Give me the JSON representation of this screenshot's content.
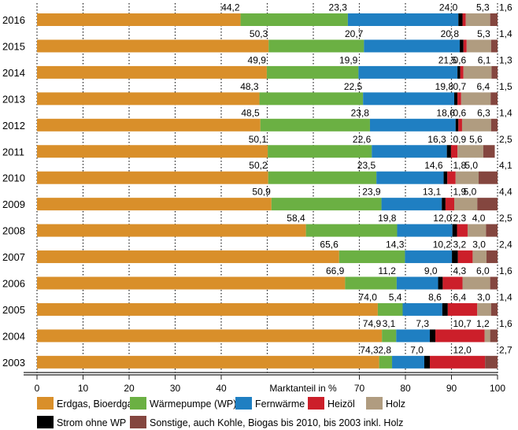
{
  "chart_data": {
    "type": "bar",
    "orientation": "horizontal",
    "stacked": true,
    "xlabel": "Marktanteil in %",
    "xlim": [
      0,
      100
    ],
    "x_tick_labels": [
      "0",
      "10",
      "20",
      "30",
      "40",
      "70",
      "80",
      "90",
      "100"
    ],
    "x_ticks": [
      0,
      10,
      20,
      30,
      40,
      70,
      80,
      90,
      100
    ],
    "grid": "vertical dotted every 10",
    "legend_placement": "bottom",
    "categories": [
      "2016",
      "2015",
      "2014",
      "2013",
      "2012",
      "2011",
      "2010",
      "2009",
      "2008",
      "2007",
      "2006",
      "2005",
      "2004",
      "2003"
    ],
    "series": [
      {
        "name": "Erdgas, Bioerdgas",
        "color": "#d98f2a",
        "values": [
          44.2,
          50.3,
          49.9,
          48.3,
          48.5,
          50.1,
          50.2,
          50.9,
          58.4,
          65.6,
          66.9,
          74.0,
          74.9,
          74.3
        ]
      },
      {
        "name": "Wärmepumpe (WP)",
        "color": "#6bb043",
        "values": [
          23.3,
          20.7,
          19.9,
          22.5,
          23.8,
          22.6,
          23.5,
          23.9,
          19.8,
          14.3,
          11.2,
          5.4,
          3.1,
          2.8
        ]
      },
      {
        "name": "Fernwärme",
        "color": "#1f7fc2",
        "values": [
          24.0,
          20.8,
          21.5,
          19.8,
          18.6,
          16.3,
          14.6,
          13.1,
          12.0,
          10.2,
          9.0,
          8.6,
          7.3,
          7.0
        ]
      },
      {
        "name": "Strom ohne WP",
        "color": "#000000",
        "values": [
          0.9,
          0.8,
          0.6,
          0.7,
          0.6,
          0.9,
          0.8,
          0.8,
          1.0,
          1.3,
          1.0,
          1.2,
          1.2,
          1.2
        ]
      },
      {
        "name": "Heizöl",
        "color": "#cc1f2a",
        "values": [
          0.7,
          0.7,
          0.7,
          0.8,
          0.8,
          1.4,
          1.8,
          1.9,
          2.3,
          3.2,
          4.3,
          6.4,
          10.7,
          12.0
        ]
      },
      {
        "name": "Holz",
        "color": "#b09c80",
        "values": [
          5.3,
          5.3,
          6.1,
          6.4,
          6.3,
          5.6,
          5.0,
          5.0,
          4.0,
          3.0,
          6.0,
          3.0,
          1.2,
          0
        ]
      },
      {
        "name": "Sonstige, auch Kohle, Biogas bis 2010, bis 2003 inkl. Holz",
        "color": "#84463f",
        "values": [
          1.6,
          1.4,
          1.3,
          1.5,
          1.4,
          2.5,
          4.1,
          4.4,
          2.5,
          2.4,
          1.6,
          1.4,
          1.6,
          2.7
        ]
      }
    ],
    "data_labels": [
      [
        [
          "0",
          "44,2"
        ],
        [
          "1",
          "23,3"
        ],
        [
          "2",
          "24,0"
        ],
        [
          "5",
          "5,3"
        ],
        [
          "6",
          "1,6"
        ]
      ],
      [
        [
          "0",
          "50,3"
        ],
        [
          "1",
          "20,7"
        ],
        [
          "2",
          "20,8"
        ],
        [
          "5",
          "5,3"
        ],
        [
          "6",
          "1,4"
        ]
      ],
      [
        [
          "0",
          "49,9"
        ],
        [
          "1",
          "19,9"
        ],
        [
          "2",
          "21,5"
        ],
        [
          "3",
          "0,6"
        ],
        [
          "5",
          "6,1"
        ],
        [
          "6",
          "1,3"
        ]
      ],
      [
        [
          "0",
          "48,3"
        ],
        [
          "1",
          "22,5"
        ],
        [
          "2",
          "19,8"
        ],
        [
          "3",
          "0,7"
        ],
        [
          "5",
          "6,4"
        ],
        [
          "6",
          "1,5"
        ]
      ],
      [
        [
          "0",
          "48,5"
        ],
        [
          "1",
          "23,8"
        ],
        [
          "2",
          "18,6"
        ],
        [
          "3",
          "0,6"
        ],
        [
          "5",
          "6,3"
        ],
        [
          "6",
          "1,4"
        ]
      ],
      [
        [
          "0",
          "50,1"
        ],
        [
          "1",
          "22,6"
        ],
        [
          "2",
          "16,3"
        ],
        [
          "3",
          "0,9"
        ],
        [
          "5",
          "5,6"
        ],
        [
          "6",
          "2,5"
        ]
      ],
      [
        [
          "0",
          "50,2"
        ],
        [
          "1",
          "23,5"
        ],
        [
          "2",
          "14,6"
        ],
        [
          "4",
          "1,8"
        ],
        [
          "5",
          "5,0"
        ],
        [
          "6",
          "4,1"
        ]
      ],
      [
        [
          "0",
          "50,9"
        ],
        [
          "1",
          "23,9"
        ],
        [
          "2",
          "13,1"
        ],
        [
          "4",
          "1,9"
        ],
        [
          "5",
          "5,0"
        ],
        [
          "6",
          "4,4"
        ]
      ],
      [
        [
          "0",
          "58,4"
        ],
        [
          "1",
          "19,8"
        ],
        [
          "2",
          "12,0"
        ],
        [
          "4",
          "2,3"
        ],
        [
          "5",
          "4,0"
        ],
        [
          "6",
          "2,5"
        ]
      ],
      [
        [
          "0",
          "65,6"
        ],
        [
          "1",
          "14,3"
        ],
        [
          "2",
          "10,2"
        ],
        [
          "4",
          "3,2"
        ],
        [
          "5",
          "3,0"
        ],
        [
          "6",
          "2,4"
        ]
      ],
      [
        [
          "0",
          "66,9"
        ],
        [
          "1",
          "11,2"
        ],
        [
          "2",
          "9,0"
        ],
        [
          "4",
          "4,3"
        ],
        [
          "5",
          "6,0"
        ],
        [
          "6",
          "1,6"
        ]
      ],
      [
        [
          "0",
          "74,0"
        ],
        [
          "1",
          "5,4"
        ],
        [
          "2",
          "8,6"
        ],
        [
          "4",
          "6,4"
        ],
        [
          "5",
          "3,0"
        ],
        [
          "6",
          "1,4"
        ]
      ],
      [
        [
          "0",
          "74,9"
        ],
        [
          "1",
          "3,1"
        ],
        [
          "2",
          "7,3"
        ],
        [
          "4",
          "10,7"
        ],
        [
          "5",
          "1,2"
        ],
        [
          "6",
          "1,6"
        ]
      ],
      [
        [
          "0",
          "74,3"
        ],
        [
          "1",
          "2,8"
        ],
        [
          "2",
          "7,0"
        ],
        [
          "4",
          "12,0"
        ],
        [
          "6",
          "2,7"
        ]
      ]
    ],
    "legend_order": [
      0,
      1,
      2,
      4,
      5,
      3,
      6
    ]
  }
}
